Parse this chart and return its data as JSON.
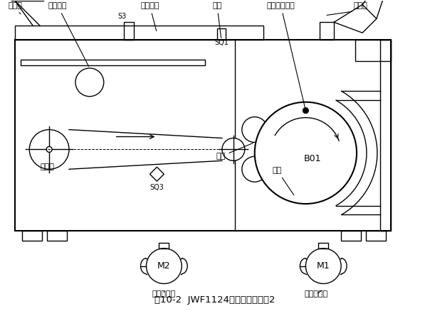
{
  "title": "图10-2  JWF1124清棉机的结构图2",
  "bg_color": "#ffffff",
  "line_color": "#000000",
  "labels": {
    "jin_mian_kou": "进棉口",
    "ya_mian_luola": "压棉罗拉",
    "mian_ceng_chao_hou": "棉层超厚",
    "men_xian": "门限",
    "da_shou_ce_su": "打手测速开关",
    "chu_mian_kou": "出棉口",
    "shu_mian_lian": "输棉帘",
    "luola": "罗拉",
    "da_shou": "打手",
    "ji_mian_dian_dong_ji": "给棉电动机",
    "da_shou_dian_dong_ji": "打手电动机",
    "S3": "S3",
    "SQ3": "SQ3",
    "SQ1": "SQ1",
    "B01": "B01",
    "M1": "M1",
    "M2": "M2"
  },
  "fig_width": 6.04,
  "fig_height": 4.38,
  "dpi": 100
}
